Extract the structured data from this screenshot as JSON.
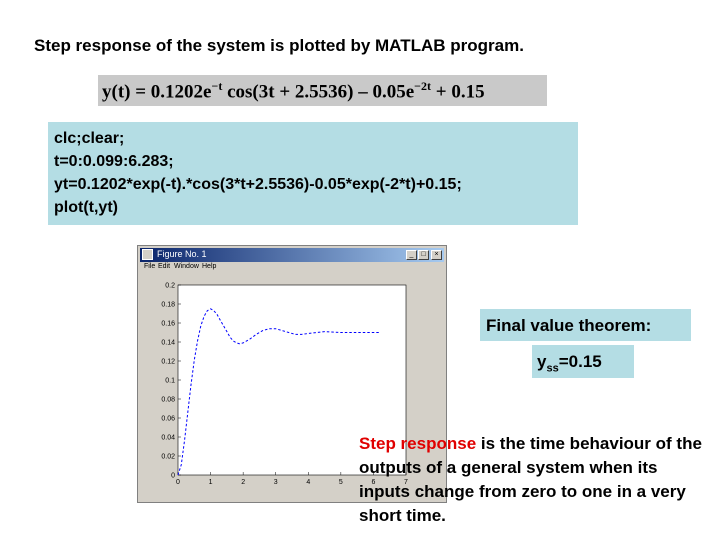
{
  "heading": "Step response of the system is plotted by MATLAB program.",
  "equation": {
    "lhs": "y(t) = 0.1202e",
    "exp1": "−t",
    "mid": " cos(3t + 2.5536) – 0.05e",
    "exp2": "−2t",
    "rhs": " + 0.15"
  },
  "code_lines": [
    "clc;clear;",
    "t=0:0.099:6.283;",
    "yt=0.1202*exp(-t).*cos(3*t+2.5536)-0.05*exp(-2*t)+0.15;",
    "plot(t,yt)"
  ],
  "figure": {
    "title": "Figure No. 1",
    "menu": [
      "File",
      "Edit",
      "Window",
      "Help"
    ],
    "buttons": [
      "_",
      "□",
      "×"
    ],
    "colors": {
      "titlebar": "#0a246a",
      "line": "#0000ff",
      "window": "#d4d0c8"
    }
  },
  "chart_data": {
    "type": "line",
    "title": "",
    "xlabel": "",
    "ylabel": "",
    "xlim": [
      0,
      7
    ],
    "ylim": [
      0,
      0.2
    ],
    "grid": false,
    "x_ticks": [
      "0",
      "1",
      "2",
      "3",
      "4",
      "5",
      "6",
      "7"
    ],
    "y_ticks": [
      "0",
      "0.02",
      "0.04",
      "0.06",
      "0.08",
      "0.1",
      "0.12",
      "0.14",
      "0.16",
      "0.18",
      "0.2"
    ],
    "series": [
      {
        "style": "dashed",
        "color": "#0000ff",
        "x": [
          0,
          0.1,
          0.2,
          0.3,
          0.4,
          0.5,
          0.6,
          0.7,
          0.8,
          0.9,
          1.0,
          1.1,
          1.2,
          1.3,
          1.4,
          1.5,
          1.6,
          1.7,
          1.8,
          1.9,
          2.0,
          2.2,
          2.4,
          2.6,
          2.8,
          3.0,
          3.2,
          3.4,
          3.6,
          3.8,
          4.0,
          4.5,
          5.0,
          5.5,
          6.0,
          6.2
        ],
        "y": [
          0.0,
          0.011,
          0.036,
          0.066,
          0.095,
          0.121,
          0.141,
          0.157,
          0.167,
          0.173,
          0.175,
          0.173,
          0.169,
          0.163,
          0.157,
          0.151,
          0.145,
          0.141,
          0.139,
          0.138,
          0.139,
          0.143,
          0.148,
          0.152,
          0.154,
          0.154,
          0.152,
          0.15,
          0.148,
          0.148,
          0.149,
          0.151,
          0.15,
          0.15,
          0.15,
          0.15
        ]
      }
    ]
  },
  "final_value": {
    "label": "Final value theorem:",
    "y": "y",
    "sub": "ss",
    "value": "=0.15"
  },
  "definition": {
    "highlight": "Step response",
    "text": " is the time behaviour of the outputs of a general system when its inputs change from zero to one in a very short time."
  }
}
